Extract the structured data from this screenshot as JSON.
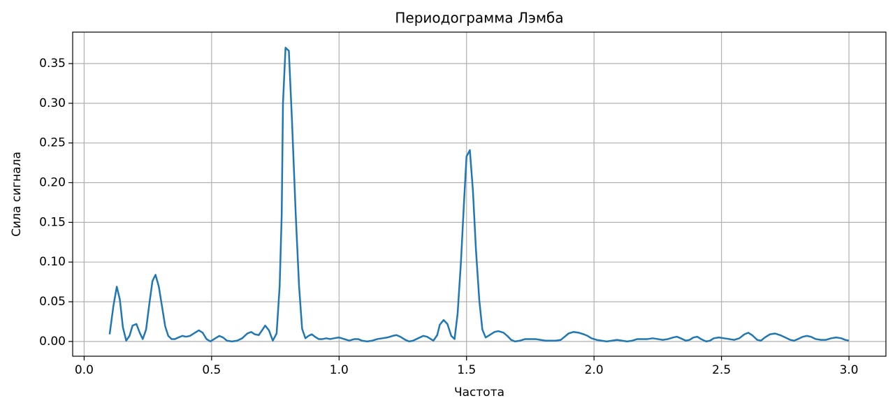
{
  "chart_data": {
    "type": "line",
    "title": "Периодограмма Лэмба",
    "x_label": "Частота",
    "y_label": "Сила сигнала",
    "color": "#1f77b4",
    "grid": true,
    "xlim": [
      -0.045,
      3.145
    ],
    "ylim": [
      -0.0186,
      0.3896
    ],
    "xticks": [
      {
        "value": 0,
        "label": "0.0"
      },
      0.5,
      {
        "value": 1,
        "label": "1.0"
      },
      1.5,
      {
        "value": 2,
        "label": "2.0"
      },
      2.5,
      {
        "value": 3,
        "label": "3.0"
      }
    ],
    "yticks": [
      {
        "value": 0,
        "label": "0.00"
      },
      0.05,
      {
        "value": 0.1,
        "label": "0.10"
      },
      0.15,
      {
        "value": 0.2,
        "label": "0.20"
      },
      0.25,
      {
        "value": 0.3,
        "label": "0.30"
      },
      0.35
    ],
    "x": [
      0.1,
      0.115,
      0.128,
      0.14,
      0.152,
      0.165,
      0.178,
      0.19,
      0.205,
      0.218,
      0.23,
      0.243,
      0.256,
      0.268,
      0.28,
      0.293,
      0.306,
      0.318,
      0.33,
      0.343,
      0.356,
      0.37,
      0.385,
      0.4,
      0.415,
      0.43,
      0.45,
      0.465,
      0.48,
      0.495,
      0.51,
      0.53,
      0.545,
      0.56,
      0.58,
      0.6,
      0.62,
      0.64,
      0.655,
      0.67,
      0.685,
      0.7,
      0.71,
      0.725,
      0.74,
      0.755,
      0.767,
      0.775,
      0.78,
      0.79,
      0.803,
      0.815,
      0.83,
      0.843,
      0.855,
      0.868,
      0.88,
      0.893,
      0.905,
      0.92,
      0.935,
      0.95,
      0.965,
      0.98,
      1.0,
      1.02,
      1.04,
      1.06,
      1.075,
      1.09,
      1.11,
      1.13,
      1.15,
      1.17,
      1.19,
      1.21,
      1.225,
      1.24,
      1.26,
      1.275,
      1.29,
      1.31,
      1.33,
      1.345,
      1.36,
      1.37,
      1.385,
      1.395,
      1.41,
      1.425,
      1.44,
      1.453,
      1.465,
      1.478,
      1.49,
      1.5,
      1.513,
      1.525,
      1.537,
      1.55,
      1.562,
      1.575,
      1.59,
      1.61,
      1.625,
      1.645,
      1.66,
      1.675,
      1.69,
      1.71,
      1.73,
      1.75,
      1.77,
      1.79,
      1.81,
      1.83,
      1.85,
      1.87,
      1.885,
      1.9,
      1.92,
      1.94,
      1.96,
      1.975,
      1.99,
      2.01,
      2.03,
      2.05,
      2.07,
      2.09,
      2.11,
      2.13,
      2.15,
      2.17,
      2.19,
      2.21,
      2.23,
      2.25,
      2.27,
      2.29,
      2.31,
      2.325,
      2.34,
      2.36,
      2.375,
      2.39,
      2.405,
      2.42,
      2.44,
      2.455,
      2.47,
      2.49,
      2.51,
      2.53,
      2.55,
      2.57,
      2.59,
      2.605,
      2.62,
      2.64,
      2.655,
      2.67,
      2.69,
      2.71,
      2.73,
      2.75,
      2.77,
      2.785,
      2.8,
      2.82,
      2.835,
      2.85,
      2.87,
      2.89,
      2.91,
      2.93,
      2.95,
      2.97,
      2.985,
      3.0
    ],
    "values": [
      0.009,
      0.045,
      0.069,
      0.053,
      0.018,
      0.001,
      0.007,
      0.02,
      0.022,
      0.011,
      0.003,
      0.015,
      0.048,
      0.076,
      0.084,
      0.069,
      0.043,
      0.019,
      0.007,
      0.003,
      0.003,
      0.005,
      0.007,
      0.006,
      0.007,
      0.01,
      0.014,
      0.011,
      0.003,
      0.0,
      0.003,
      0.007,
      0.005,
      0.001,
      0.0,
      0.001,
      0.004,
      0.01,
      0.012,
      0.009,
      0.008,
      0.015,
      0.02,
      0.014,
      0.001,
      0.01,
      0.07,
      0.16,
      0.3,
      0.37,
      0.366,
      0.28,
      0.16,
      0.07,
      0.016,
      0.004,
      0.007,
      0.009,
      0.006,
      0.003,
      0.003,
      0.004,
      0.003,
      0.004,
      0.005,
      0.003,
      0.001,
      0.003,
      0.003,
      0.001,
      0.0,
      0.001,
      0.003,
      0.004,
      0.005,
      0.007,
      0.008,
      0.006,
      0.002,
      0.0,
      0.001,
      0.004,
      0.007,
      0.006,
      0.003,
      0.001,
      0.008,
      0.021,
      0.027,
      0.022,
      0.007,
      0.003,
      0.035,
      0.1,
      0.175,
      0.233,
      0.241,
      0.19,
      0.115,
      0.052,
      0.015,
      0.005,
      0.008,
      0.012,
      0.013,
      0.011,
      0.007,
      0.002,
      0.0,
      0.001,
      0.003,
      0.003,
      0.003,
      0.002,
      0.001,
      0.001,
      0.001,
      0.002,
      0.006,
      0.01,
      0.012,
      0.011,
      0.009,
      0.007,
      0.004,
      0.002,
      0.001,
      0.0,
      0.001,
      0.002,
      0.001,
      0.0,
      0.001,
      0.003,
      0.003,
      0.003,
      0.004,
      0.003,
      0.002,
      0.003,
      0.005,
      0.006,
      0.004,
      0.001,
      0.002,
      0.005,
      0.006,
      0.003,
      0.0,
      0.001,
      0.004,
      0.005,
      0.004,
      0.003,
      0.002,
      0.004,
      0.009,
      0.011,
      0.008,
      0.002,
      0.001,
      0.005,
      0.009,
      0.01,
      0.008,
      0.005,
      0.002,
      0.001,
      0.003,
      0.006,
      0.007,
      0.006,
      0.003,
      0.002,
      0.002,
      0.004,
      0.005,
      0.004,
      0.002,
      0.001
    ]
  }
}
